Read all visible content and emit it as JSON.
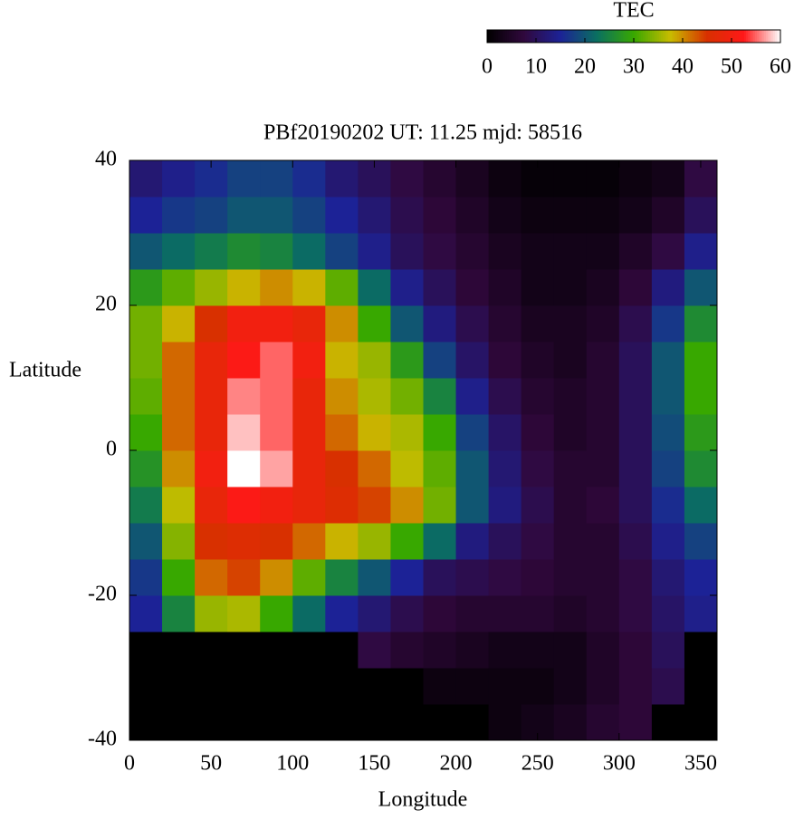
{
  "chart_data": {
    "type": "heatmap",
    "title": "PBf20190202  UT: 11.25  mjd: 58516",
    "x_label": "Longitude",
    "y_label": "Latitude",
    "colorbar_title": "TEC",
    "xlim": [
      0,
      360
    ],
    "xticks": [
      0,
      50,
      100,
      150,
      200,
      250,
      300,
      350
    ],
    "ylim": [
      -40,
      40
    ],
    "yticks": [
      -40,
      -20,
      0,
      20,
      40
    ],
    "clim": [
      0,
      60
    ],
    "cticks": [
      0,
      10,
      20,
      30,
      40,
      50,
      60
    ],
    "colormap": [
      "#000000",
      "#30083c",
      "#1c2296",
      "#0a7060",
      "#38a800",
      "#c8bc00",
      "#d83000",
      "#ff1818",
      "#ffffff"
    ],
    "x": [
      10,
      30,
      50,
      70,
      90,
      110,
      130,
      150,
      170,
      190,
      210,
      230,
      250,
      270,
      290,
      310,
      330,
      350
    ],
    "y": [
      -37.5,
      -32.5,
      -27.5,
      -22.5,
      -17.5,
      -12.5,
      -7.5,
      -2.5,
      2.5,
      7.5,
      12.5,
      17.5,
      22.5,
      27.5,
      32.5,
      37.5
    ],
    "z": [
      [
        0,
        0,
        0,
        0,
        0,
        0,
        0,
        0,
        0,
        0,
        0,
        2,
        3,
        4,
        6,
        7,
        0,
        0
      ],
      [
        0,
        0,
        0,
        0,
        0,
        0,
        0,
        0,
        0,
        2,
        2,
        2,
        2,
        3,
        5,
        7,
        9,
        0
      ],
      [
        0,
        0,
        0,
        0,
        0,
        0,
        0,
        8,
        6,
        5,
        4,
        3,
        3,
        3,
        5,
        7,
        10,
        0
      ],
      [
        15,
        25,
        35,
        36,
        30,
        22,
        15,
        12,
        9,
        7,
        6,
        6,
        6,
        5,
        6,
        8,
        11,
        14
      ],
      [
        17,
        30,
        42,
        44,
        40,
        32,
        25,
        20,
        15,
        10,
        9,
        8,
        7,
        6,
        6,
        8,
        12,
        15
      ],
      [
        20,
        34,
        45,
        46,
        45,
        42,
        38,
        35,
        30,
        22,
        13,
        10,
        8,
        6,
        6,
        9,
        14,
        18
      ],
      [
        24,
        37,
        48,
        52,
        50,
        48,
        46,
        44,
        40,
        33,
        20,
        13,
        9,
        6,
        7,
        10,
        16,
        22
      ],
      [
        27,
        40,
        50,
        60,
        57,
        48,
        45,
        42,
        37,
        32,
        20,
        12,
        8,
        6,
        6,
        10,
        18,
        26
      ],
      [
        30,
        42,
        48,
        58,
        55,
        48,
        42,
        38,
        36,
        30,
        18,
        11,
        7,
        5,
        6,
        10,
        19,
        28
      ],
      [
        32,
        42,
        48,
        56,
        55,
        48,
        40,
        36,
        33,
        25,
        14,
        9,
        6,
        5,
        6,
        10,
        20,
        30
      ],
      [
        33,
        42,
        48,
        52,
        55,
        50,
        38,
        35,
        28,
        18,
        11,
        7,
        5,
        4,
        6,
        10,
        20,
        30
      ],
      [
        33,
        38,
        45,
        50,
        50,
        48,
        40,
        30,
        20,
        13,
        9,
        6,
        4,
        4,
        5,
        9,
        17,
        26
      ],
      [
        28,
        32,
        35,
        38,
        40,
        38,
        32,
        22,
        14,
        10,
        7,
        5,
        3,
        3,
        4,
        7,
        13,
        20
      ],
      [
        20,
        22,
        24,
        26,
        25,
        22,
        18,
        14,
        10,
        8,
        6,
        4,
        3,
        3,
        3,
        5,
        8,
        14
      ],
      [
        15,
        17,
        18,
        20,
        20,
        18,
        15,
        12,
        9,
        7,
        5,
        3,
        2,
        2,
        2,
        3,
        5,
        10
      ],
      [
        12,
        14,
        16,
        18,
        18,
        16,
        12,
        10,
        8,
        6,
        4,
        2,
        1,
        1,
        1,
        2,
        3,
        8
      ]
    ]
  }
}
